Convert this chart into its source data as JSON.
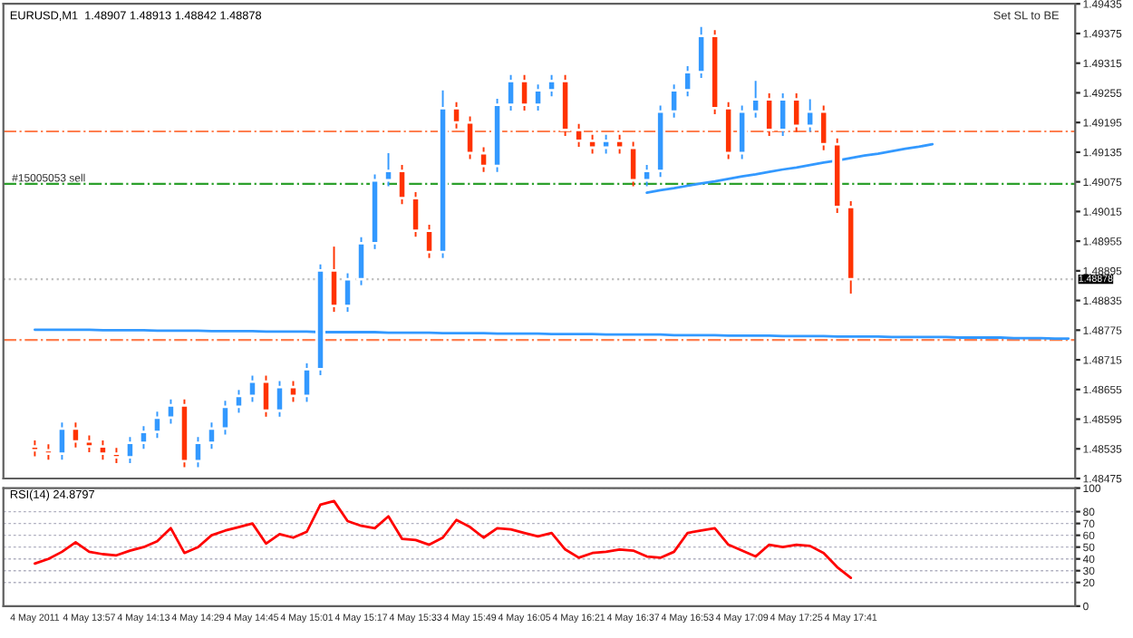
{
  "chart_data": [
    {
      "type": "candlestick",
      "title": "EURUSD,M1  1.48907 1.48913 1.48842 1.48878",
      "annotations": [
        "Set SL to BE"
      ],
      "categories": [
        null,
        null,
        null,
        null,
        null,
        null,
        null,
        null,
        null,
        null,
        null,
        null,
        null,
        null,
        null,
        null,
        null,
        null,
        null,
        null,
        null,
        null,
        null,
        null,
        null,
        null,
        null,
        null,
        null,
        null,
        null,
        null,
        null,
        null,
        null,
        null,
        null,
        null,
        null,
        null,
        null,
        null,
        null,
        null,
        null,
        null,
        null,
        null,
        null,
        null,
        null,
        null,
        null,
        null,
        null,
        null,
        null,
        null,
        null,
        null,
        null,
        null,
        null,
        null,
        null,
        null,
        null,
        null,
        null,
        null,
        null,
        null,
        null,
        null,
        null,
        null,
        null
      ],
      "ohlc": [
        [
          1.4854,
          1.48552,
          1.4852,
          1.48532
        ],
        [
          1.48532,
          1.48544,
          1.48513,
          1.48525
        ],
        [
          1.48525,
          1.48588,
          1.48513,
          1.48576
        ],
        [
          1.48576,
          1.48588,
          1.48538,
          1.4855
        ],
        [
          1.4855,
          1.48562,
          1.48528,
          1.4854
        ],
        [
          1.4854,
          1.48552,
          1.48513,
          1.48525
        ],
        [
          1.48525,
          1.48537,
          1.48506,
          1.48518
        ],
        [
          1.48518,
          1.48559,
          1.48506,
          1.48547
        ],
        [
          1.48547,
          1.48581,
          1.48535,
          1.48569
        ],
        [
          1.48569,
          1.4861,
          1.48557,
          1.48598
        ],
        [
          1.48598,
          1.48635,
          1.48586,
          1.48623
        ],
        [
          1.48623,
          1.48635,
          1.48498,
          1.4851
        ],
        [
          1.4851,
          1.48559,
          1.48498,
          1.48547
        ],
        [
          1.48547,
          1.48588,
          1.48535,
          1.48576
        ],
        [
          1.48576,
          1.48632,
          1.48564,
          1.4862
        ],
        [
          1.4862,
          1.48654,
          1.48608,
          1.48642
        ],
        [
          1.48642,
          1.48683,
          1.4863,
          1.48671
        ],
        [
          1.48671,
          1.48683,
          1.486,
          1.48612
        ],
        [
          1.48612,
          1.48672,
          1.486,
          1.4866
        ],
        [
          1.4866,
          1.48672,
          1.4863,
          1.48642
        ],
        [
          1.48642,
          1.48708,
          1.4863,
          1.48696
        ],
        [
          1.48696,
          1.48908,
          1.48684,
          1.48896
        ],
        [
          1.48896,
          1.48944,
          1.48812,
          1.48824
        ],
        [
          1.48824,
          1.4889,
          1.48812,
          1.48878
        ],
        [
          1.48878,
          1.48963,
          1.48866,
          1.48951
        ],
        [
          1.48951,
          1.4909,
          1.48939,
          1.49078
        ],
        [
          1.49078,
          1.49133,
          1.49066,
          1.49097
        ],
        [
          1.49097,
          1.49109,
          1.4903,
          1.49042
        ],
        [
          1.49042,
          1.49054,
          1.48964,
          1.48976
        ],
        [
          1.48976,
          1.48988,
          1.48921,
          1.48933
        ],
        [
          1.48933,
          1.4926,
          1.48921,
          1.49224
        ],
        [
          1.49224,
          1.49236,
          1.49183,
          1.49195
        ],
        [
          1.49195,
          1.49207,
          1.49121,
          1.49133
        ],
        [
          1.49133,
          1.49145,
          1.49095,
          1.49107
        ],
        [
          1.49107,
          1.49243,
          1.49095,
          1.49231
        ],
        [
          1.49231,
          1.49291,
          1.49219,
          1.49279
        ],
        [
          1.49279,
          1.49291,
          1.49219,
          1.49231
        ],
        [
          1.49231,
          1.49272,
          1.49219,
          1.4926
        ],
        [
          1.4926,
          1.49291,
          1.49248,
          1.49279
        ],
        [
          1.49279,
          1.49291,
          1.49168,
          1.4918
        ],
        [
          1.4918,
          1.49192,
          1.49146,
          1.49158
        ],
        [
          1.49158,
          1.4917,
          1.49132,
          1.49144
        ],
        [
          1.49144,
          1.4917,
          1.49132,
          1.49158
        ],
        [
          1.49158,
          1.4917,
          1.49132,
          1.49144
        ],
        [
          1.49144,
          1.49156,
          1.49066,
          1.49078
        ],
        [
          1.49078,
          1.49109,
          1.49066,
          1.49097
        ],
        [
          1.49097,
          1.49229,
          1.49085,
          1.49217
        ],
        [
          1.49217,
          1.49272,
          1.49205,
          1.4926
        ],
        [
          1.4926,
          1.49309,
          1.49248,
          1.49297
        ],
        [
          1.49297,
          1.49388,
          1.49285,
          1.4937
        ],
        [
          1.4937,
          1.49382,
          1.49212,
          1.49224
        ],
        [
          1.49224,
          1.49236,
          1.49121,
          1.49133
        ],
        [
          1.49133,
          1.49229,
          1.49121,
          1.49217
        ],
        [
          1.49217,
          1.49279,
          1.49205,
          1.49242
        ],
        [
          1.49242,
          1.49254,
          1.49168,
          1.4918
        ],
        [
          1.4918,
          1.49254,
          1.49168,
          1.49242
        ],
        [
          1.49242,
          1.49254,
          1.49176,
          1.49188
        ],
        [
          1.49188,
          1.49242,
          1.49176,
          1.49217
        ],
        [
          1.49217,
          1.49229,
          1.49139,
          1.49151
        ],
        [
          1.49151,
          1.49163,
          1.49012,
          1.49024
        ],
        [
          1.49024,
          1.49036,
          1.48849,
          1.48878
        ],
        null,
        null,
        null,
        null,
        null,
        null,
        null,
        null,
        null,
        null,
        null,
        null,
        null,
        null,
        null,
        null
      ],
      "colors": [
        "#ff3300",
        "#ff3300",
        "#3399ff",
        "#ff3300",
        "#ff3300",
        "#ff3300",
        "#ff3300",
        "#3399ff",
        "#3399ff",
        "#3399ff",
        "#3399ff",
        "#ff3300",
        "#3399ff",
        "#3399ff",
        "#3399ff",
        "#3399ff",
        "#3399ff",
        "#ff3300",
        "#3399ff",
        "#ff3300",
        "#3399ff",
        "#3399ff",
        "#ff3300",
        "#3399ff",
        "#3399ff",
        "#3399ff",
        "#3399ff",
        "#ff3300",
        "#ff3300",
        "#ff3300",
        "#3399ff",
        "#ff3300",
        "#ff3300",
        "#ff3300",
        "#3399ff",
        "#3399ff",
        "#ff3300",
        "#3399ff",
        "#3399ff",
        "#ff3300",
        "#ff3300",
        "#ff3300",
        "#3399ff",
        "#ff3300",
        "#ff3300",
        "#3399ff",
        "#3399ff",
        "#3399ff",
        "#3399ff",
        "#3399ff",
        "#ff3300",
        "#ff3300",
        "#3399ff",
        "#3399ff",
        "#ff3300",
        "#3399ff",
        "#ff3300",
        "#3399ff",
        "#ff3300",
        "#ff3300",
        "#ff3300",
        null,
        null,
        null,
        null,
        null,
        null,
        null,
        null,
        null,
        null,
        null,
        null,
        null,
        null,
        null,
        null
      ],
      "series": [
        {
          "type": "line",
          "color": "#3399ff",
          "values": [
            null,
            null,
            null,
            null,
            null,
            null,
            null,
            null,
            null,
            null,
            null,
            null,
            null,
            null,
            null,
            null,
            null,
            null,
            null,
            null,
            null,
            null,
            null,
            null,
            null,
            null,
            null,
            null,
            null,
            null,
            null,
            null,
            null,
            null,
            null,
            null,
            null,
            null,
            null,
            null,
            null,
            null,
            null,
            null,
            null,
            1.49053,
            1.49058,
            1.49062,
            1.49067,
            1.49072,
            1.49076,
            1.49081,
            1.49086,
            1.4909,
            1.49095,
            1.491,
            1.49104,
            1.49109,
            1.49114,
            1.49118,
            1.49123,
            1.49128,
            1.49132,
            1.49137,
            1.49142,
            1.49146,
            1.49151,
            null,
            null,
            null,
            null,
            null,
            null,
            null,
            null,
            null,
            null
          ]
        },
        {
          "type": "line",
          "color": "#3399ff",
          "values": [
            1.48776,
            1.48776,
            1.48776,
            1.48776,
            1.48776,
            1.48775,
            1.48775,
            1.48775,
            1.48775,
            1.48774,
            1.48774,
            1.48774,
            1.48774,
            1.48773,
            1.48773,
            1.48773,
            1.48773,
            1.48772,
            1.48772,
            1.48772,
            1.48772,
            1.48771,
            1.48771,
            1.48771,
            1.48771,
            1.48771,
            1.4877,
            1.4877,
            1.4877,
            1.4877,
            1.48769,
            1.48769,
            1.48769,
            1.48769,
            1.48768,
            1.48768,
            1.48768,
            1.48768,
            1.48767,
            1.48767,
            1.48767,
            1.48767,
            1.48766,
            1.48766,
            1.48766,
            1.48766,
            1.48766,
            1.48765,
            1.48765,
            1.48765,
            1.48765,
            1.48764,
            1.48764,
            1.48764,
            1.48764,
            1.48763,
            1.48763,
            1.48763,
            1.48763,
            1.48762,
            1.48762,
            1.48762,
            1.48762,
            1.48761,
            1.48761,
            1.48761,
            1.48761,
            1.48761,
            1.4876,
            1.4876,
            1.4876,
            1.4876,
            1.48759,
            1.48759,
            1.48759,
            1.48758,
            1.48758
          ]
        }
      ],
      "ref_lines": [
        {
          "axis": "y",
          "value": 1.49177,
          "color": "#ff7f50",
          "line_style": "dashed"
        },
        {
          "axis": "y",
          "value": 1.49071,
          "label": "#15005053 sell",
          "color": "#2ca02c",
          "line_style": "dashed"
        },
        {
          "axis": "y",
          "value": 1.48755,
          "color": "#ff7f50",
          "line_style": "dashed"
        },
        {
          "axis": "y",
          "value": 1.48878,
          "label": "1.48878",
          "color": "#c0c0c0",
          "line_style": "dotted"
        }
      ],
      "ylim": [
        1.48475,
        1.49435
      ],
      "yticks": [
        1.48475,
        1.48535,
        1.48595,
        1.48655,
        1.48715,
        1.48775,
        1.48835,
        1.48895,
        1.48955,
        1.49015,
        1.49075,
        1.49135,
        1.49195,
        1.49255,
        1.49315,
        1.49375,
        1.49435
      ],
      "tick_labels": "y",
      "grid": false
    },
    {
      "type": "line",
      "title": "RSI(14) 24.8797",
      "categories": [
        "4 May 2011",
        null,
        null,
        null,
        "4 May 13:57",
        null,
        null,
        null,
        "4 May 14:13",
        null,
        null,
        null,
        "4 May 14:29",
        null,
        null,
        null,
        "4 May 14:45",
        null,
        null,
        null,
        "4 May 15:01",
        null,
        null,
        null,
        "4 May 15:17",
        null,
        null,
        null,
        "4 May 15:33",
        null,
        null,
        null,
        "4 May 15:49",
        null,
        null,
        null,
        "4 May 16:05",
        null,
        null,
        null,
        "4 May 16:21",
        null,
        null,
        null,
        "4 May 16:37",
        null,
        null,
        null,
        "4 May 16:53",
        null,
        null,
        null,
        "4 May 17:09",
        null,
        null,
        null,
        "4 May 17:25",
        null,
        null,
        null,
        "4 May 17:41",
        null,
        null,
        null,
        null,
        null,
        null,
        null,
        null,
        null,
        null,
        null,
        null,
        null,
        null,
        null,
        null
      ],
      "series": [
        {
          "color": "#ff0000",
          "values": [
            36,
            40,
            46,
            54,
            46,
            44,
            43,
            47,
            50,
            55,
            66,
            45,
            50,
            60,
            64,
            67,
            70,
            53,
            61,
            58,
            63,
            86,
            89,
            72,
            68,
            66,
            76,
            57,
            56,
            52,
            58,
            73,
            67,
            58,
            66,
            65,
            62,
            59,
            62,
            48,
            41,
            45,
            46,
            48,
            47,
            42,
            41,
            46,
            62,
            64,
            66,
            52,
            47,
            42,
            52,
            50,
            52,
            51,
            45,
            33,
            24,
            null,
            null,
            null,
            null,
            null,
            null,
            null,
            null,
            null,
            null,
            null,
            null,
            null,
            null,
            null,
            null
          ]
        }
      ],
      "ylim": [
        0,
        100
      ],
      "yticks": [
        0,
        20,
        30,
        40,
        50,
        60,
        70,
        80,
        100
      ],
      "grid": "y"
    }
  ]
}
